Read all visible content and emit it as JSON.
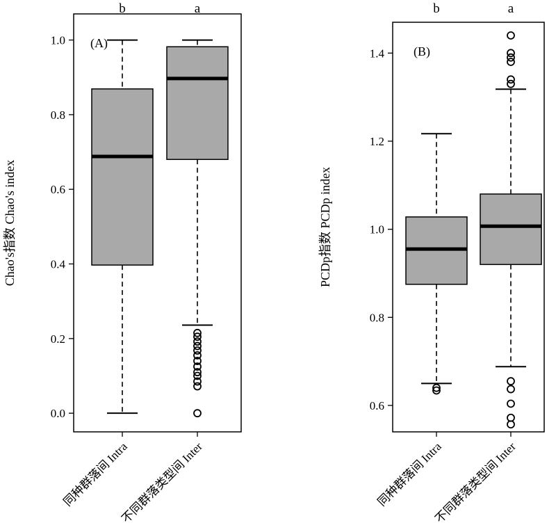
{
  "colors": {
    "box_fill": "#a9a9a9",
    "stroke": "#000000",
    "background": "#ffffff"
  },
  "chart_data": [
    {
      "type": "boxplot",
      "panel_label": "(A)",
      "ylabel": "Chao's指数  Chao's index",
      "ylim": [
        -0.05,
        1.07
      ],
      "yticks": [
        "0.0",
        "0.2",
        "0.4",
        "0.6",
        "0.8",
        "1.0"
      ],
      "categories": [
        "同种群落间 Intra",
        "不同群落类型间 Inter"
      ],
      "significance": [
        "b",
        "a"
      ],
      "boxes": [
        {
          "whisker_low": 0.0,
          "q1": 0.397,
          "median": 0.688,
          "q3": 0.869,
          "whisker_high": 1.0,
          "outliers": []
        },
        {
          "whisker_low": 0.236,
          "q1": 0.68,
          "median": 0.897,
          "q3": 0.982,
          "whisker_high": 1.0,
          "outliers": [
            0.0,
            0.072,
            0.085,
            0.1,
            0.11,
            0.125,
            0.14,
            0.155,
            0.168,
            0.18,
            0.192,
            0.205,
            0.215
          ]
        }
      ],
      "grid": false,
      "legend": "none"
    },
    {
      "type": "boxplot",
      "panel_label": "(B)",
      "ylabel": "PCDp指数  PCDp index",
      "ylim": [
        0.54,
        1.47
      ],
      "yticks": [
        "0.6",
        "0.8",
        "1.0",
        "1.2",
        "1.4"
      ],
      "categories": [
        "同种群落间 Intra",
        "不同群落类型间 Inter"
      ],
      "significance": [
        "b",
        "a"
      ],
      "boxes": [
        {
          "whisker_low": 0.65,
          "q1": 0.875,
          "median": 0.955,
          "q3": 1.028,
          "whisker_high": 1.217,
          "outliers": [
            0.634,
            0.64
          ]
        },
        {
          "whisker_low": 0.688,
          "q1": 0.92,
          "median": 1.007,
          "q3": 1.08,
          "whisker_high": 1.318,
          "outliers": [
            0.557,
            0.572,
            0.604,
            0.637,
            0.655,
            1.33,
            1.34,
            1.38,
            1.39,
            1.4,
            1.44
          ]
        }
      ],
      "grid": false,
      "legend": "none"
    }
  ]
}
